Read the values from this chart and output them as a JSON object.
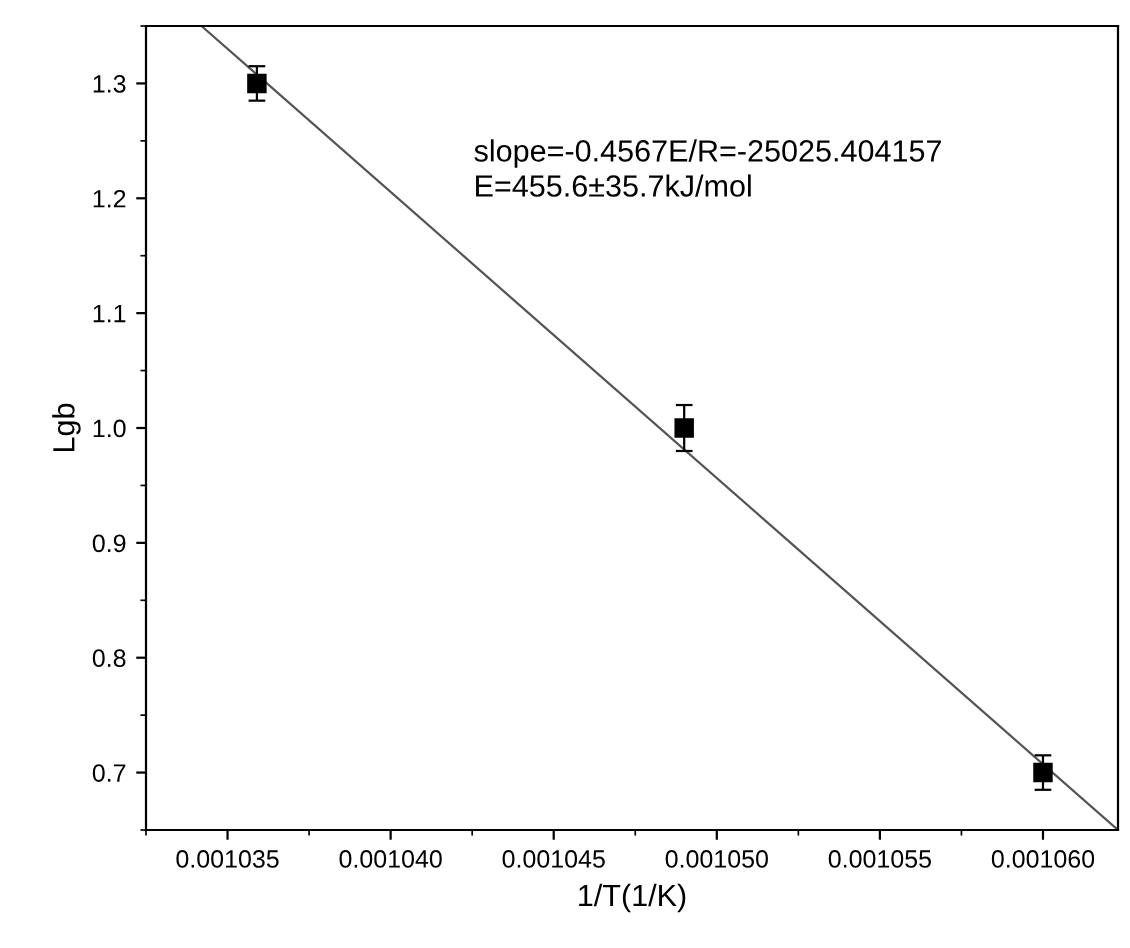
{
  "chart_data": {
    "type": "scatter",
    "xlabel": "1/T(1/K)",
    "ylabel": "Lgb",
    "xlim": [
      0.0010325,
      0.0010623
    ],
    "ylim": [
      0.65,
      1.35
    ],
    "xticks": [
      0.001035,
      {
        "value": 0.00104,
        "label": "0.001040"
      },
      0.001045,
      {
        "value": 0.00105,
        "label": "0.001050"
      },
      0.001055,
      {
        "value": 0.00106,
        "label": "0.001060"
      }
    ],
    "yticks": [
      0.7,
      0.8,
      0.9,
      {
        "value": 1.0,
        "label": "1.0"
      },
      1.1,
      1.2,
      1.3
    ],
    "annotations": [
      "slope=-0.4567E/R=-25025.404157",
      "E=455.6±35.7kJ/mol"
    ],
    "series": [
      {
        "color": "#000000",
        "marker": "square",
        "x": [
          0.0010359,
          0.001049,
          0.00106
        ],
        "values": [
          1.3,
          1.0,
          0.7
        ],
        "errors": [
          0.015,
          0.02,
          0.015
        ]
      },
      {
        "type": "line",
        "color": "#555555",
        "line_style": "solid",
        "x": [
          0.0010342,
          0.0010623
        ],
        "values": [
          1.35,
          0.65
        ]
      }
    ]
  }
}
